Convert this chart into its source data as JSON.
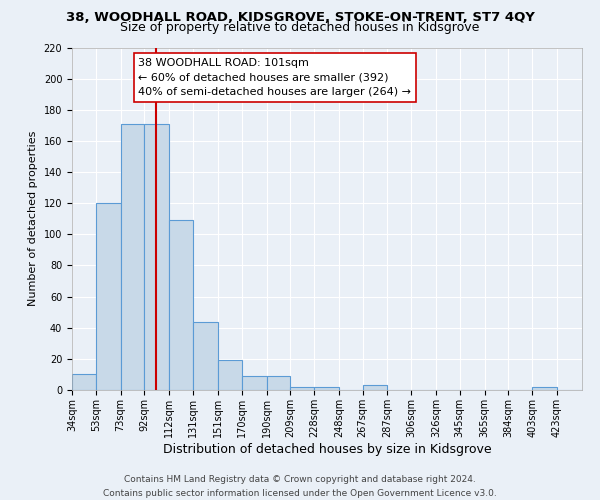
{
  "title": "38, WOODHALL ROAD, KIDSGROVE, STOKE-ON-TRENT, ST7 4QY",
  "subtitle": "Size of property relative to detached houses in Kidsgrove",
  "xlabel": "Distribution of detached houses by size in Kidsgrove",
  "ylabel": "Number of detached properties",
  "bin_labels": [
    "34sqm",
    "53sqm",
    "73sqm",
    "92sqm",
    "112sqm",
    "131sqm",
    "151sqm",
    "170sqm",
    "190sqm",
    "209sqm",
    "228sqm",
    "248sqm",
    "267sqm",
    "287sqm",
    "306sqm",
    "326sqm",
    "345sqm",
    "365sqm",
    "384sqm",
    "403sqm",
    "423sqm"
  ],
  "bin_edges": [
    34,
    53,
    73,
    92,
    112,
    131,
    151,
    170,
    190,
    209,
    228,
    248,
    267,
    287,
    306,
    326,
    345,
    365,
    384,
    403,
    423,
    443
  ],
  "bar_heights": [
    10,
    120,
    171,
    171,
    109,
    44,
    19,
    9,
    9,
    2,
    2,
    0,
    3,
    0,
    0,
    0,
    0,
    0,
    0,
    2,
    0
  ],
  "bar_color": "#c8d9e8",
  "bar_edgecolor": "#5b9bd5",
  "bar_linewidth": 0.8,
  "vline_x": 101,
  "vline_color": "#cc0000",
  "annotation_line1": "38 WOODHALL ROAD: 101sqm",
  "annotation_line2": "← 60% of detached houses are smaller (392)",
  "annotation_line3": "40% of semi-detached houses are larger (264) →",
  "ylim": [
    0,
    220
  ],
  "yticks": [
    0,
    20,
    40,
    60,
    80,
    100,
    120,
    140,
    160,
    180,
    200,
    220
  ],
  "bg_color": "#eaf0f7",
  "plot_bg_color": "#eaf0f7",
  "footer_line1": "Contains HM Land Registry data © Crown copyright and database right 2024.",
  "footer_line2": "Contains public sector information licensed under the Open Government Licence v3.0.",
  "title_fontsize": 9.5,
  "subtitle_fontsize": 9,
  "xlabel_fontsize": 9,
  "ylabel_fontsize": 8,
  "tick_fontsize": 7,
  "annotation_fontsize": 8,
  "footer_fontsize": 6.5
}
